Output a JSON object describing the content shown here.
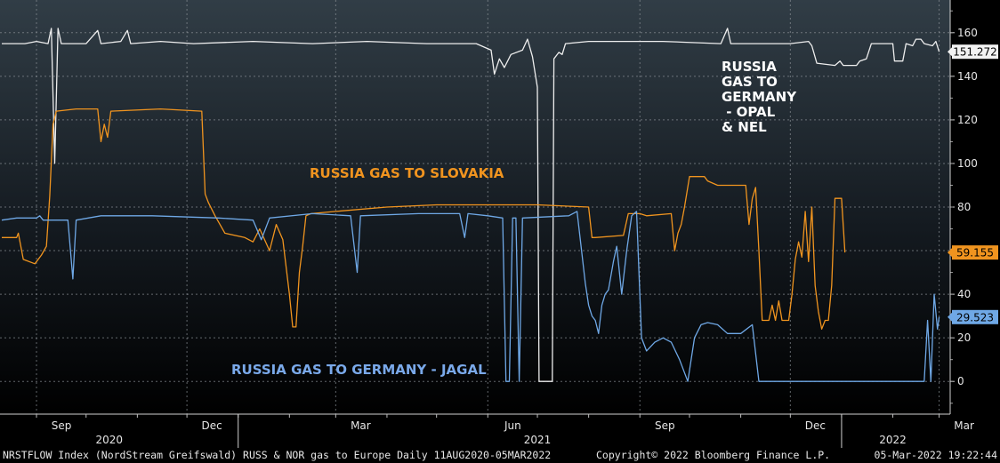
{
  "chart_data": {
    "type": "line",
    "title": "",
    "x_range": [
      "2020-08-11",
      "2022-03-05"
    ],
    "ylim": [
      -15,
      175
    ],
    "y_ticks": [
      0,
      20,
      40,
      60,
      80,
      100,
      120,
      140,
      160
    ],
    "y_axis_position": "right",
    "grid": true,
    "x_month_labels": [
      {
        "date": "2020-09-01",
        "label": "Sep"
      },
      {
        "date": "2020-12-01",
        "label": "Dec"
      },
      {
        "date": "2021-03-01",
        "label": "Mar"
      },
      {
        "date": "2021-06-01",
        "label": "Jun"
      },
      {
        "date": "2021-09-01",
        "label": "Sep"
      },
      {
        "date": "2021-12-01",
        "label": "Dec"
      },
      {
        "date": "2022-03-01",
        "label": "Mar"
      }
    ],
    "x_year_labels": [
      {
        "date": "2020-10-15",
        "label": "2020"
      },
      {
        "date": "2021-07-01",
        "label": "2021"
      },
      {
        "date": "2022-02-01",
        "label": "2022"
      }
    ],
    "series": [
      {
        "name": "RUSSIA GAS TO GERMANY - OPAL & NEL",
        "display_name": [
          "RUSSIA",
          "GAS TO",
          "GERMANY",
          "  - OPAL",
          "& NEL"
        ],
        "color": "#eeeeee",
        "last_value": "151.272",
        "points": [
          [
            "2020-08-11",
            155
          ],
          [
            "2020-08-25",
            155
          ],
          [
            "2020-09-01",
            156
          ],
          [
            "2020-09-08",
            155
          ],
          [
            "2020-09-10",
            162
          ],
          [
            "2020-09-12",
            100
          ],
          [
            "2020-09-14",
            162
          ],
          [
            "2020-09-16",
            155
          ],
          [
            "2020-10-01",
            155
          ],
          [
            "2020-10-08",
            161
          ],
          [
            "2020-10-10",
            155
          ],
          [
            "2020-10-22",
            156
          ],
          [
            "2020-10-26",
            161
          ],
          [
            "2020-10-28",
            155
          ],
          [
            "2020-11-15",
            156
          ],
          [
            "2020-12-05",
            155
          ],
          [
            "2021-01-10",
            156
          ],
          [
            "2021-02-15",
            155
          ],
          [
            "2021-03-20",
            156
          ],
          [
            "2021-04-25",
            155
          ],
          [
            "2021-05-25",
            155
          ],
          [
            "2021-06-03",
            152
          ],
          [
            "2021-06-05",
            141
          ],
          [
            "2021-06-08",
            148
          ],
          [
            "2021-06-11",
            144
          ],
          [
            "2021-06-15",
            150
          ],
          [
            "2021-06-22",
            152
          ],
          [
            "2021-06-25",
            157
          ],
          [
            "2021-06-28",
            149
          ],
          [
            "2021-07-01",
            135
          ],
          [
            "2021-07-02",
            0
          ],
          [
            "2021-07-10",
            0
          ],
          [
            "2021-07-11",
            148
          ],
          [
            "2021-07-14",
            151
          ],
          [
            "2021-07-16",
            150
          ],
          [
            "2021-07-18",
            155
          ],
          [
            "2021-08-01",
            156
          ],
          [
            "2021-09-15",
            156
          ],
          [
            "2021-10-20",
            155
          ],
          [
            "2021-10-24",
            162
          ],
          [
            "2021-10-26",
            155
          ],
          [
            "2021-12-01",
            155
          ],
          [
            "2021-12-12",
            156
          ],
          [
            "2021-12-14",
            154
          ],
          [
            "2021-12-17",
            146
          ],
          [
            "2021-12-28",
            145
          ],
          [
            "2021-12-31",
            147
          ],
          [
            "2022-01-02",
            145
          ],
          [
            "2022-01-10",
            145
          ],
          [
            "2022-01-12",
            147
          ],
          [
            "2022-01-16",
            148
          ],
          [
            "2022-01-19",
            155
          ],
          [
            "2022-02-01",
            155
          ],
          [
            "2022-02-02",
            147
          ],
          [
            "2022-02-07",
            147
          ],
          [
            "2022-02-09",
            155
          ],
          [
            "2022-02-13",
            154
          ],
          [
            "2022-02-15",
            157
          ],
          [
            "2022-02-18",
            157
          ],
          [
            "2022-02-20",
            155
          ],
          [
            "2022-02-25",
            154
          ],
          [
            "2022-02-27",
            156
          ],
          [
            "2022-03-01",
            151.272
          ]
        ]
      },
      {
        "name": "RUSSIA GAS TO SLOVAKIA",
        "display_name": [
          "RUSSIA GAS TO SLOVAKIA"
        ],
        "color": "#f0941f",
        "last_value": "59.155",
        "points": [
          [
            "2020-08-11",
            66
          ],
          [
            "2020-08-20",
            66
          ],
          [
            "2020-08-21",
            68
          ],
          [
            "2020-08-24",
            56
          ],
          [
            "2020-08-31",
            54
          ],
          [
            "2020-09-04",
            58
          ],
          [
            "2020-09-07",
            62
          ],
          [
            "2020-09-09",
            85
          ],
          [
            "2020-09-11",
            118
          ],
          [
            "2020-09-13",
            124
          ],
          [
            "2020-09-25",
            125
          ],
          [
            "2020-10-08",
            125
          ],
          [
            "2020-10-10",
            110
          ],
          [
            "2020-10-12",
            118
          ],
          [
            "2020-10-14",
            112
          ],
          [
            "2020-10-16",
            124
          ],
          [
            "2020-11-15",
            125
          ],
          [
            "2020-12-10",
            124
          ],
          [
            "2020-12-12",
            86
          ],
          [
            "2020-12-14",
            82
          ],
          [
            "2020-12-18",
            76
          ],
          [
            "2020-12-24",
            68
          ],
          [
            "2021-01-05",
            66
          ],
          [
            "2021-01-10",
            64
          ],
          [
            "2021-01-14",
            70
          ],
          [
            "2021-01-20",
            60
          ],
          [
            "2021-01-24",
            72
          ],
          [
            "2021-01-28",
            65
          ],
          [
            "2021-02-01",
            40
          ],
          [
            "2021-02-03",
            25
          ],
          [
            "2021-02-05",
            25
          ],
          [
            "2021-02-07",
            50
          ],
          [
            "2021-02-09",
            62
          ],
          [
            "2021-02-11",
            76
          ],
          [
            "2021-02-14",
            77
          ],
          [
            "2021-03-01",
            78
          ],
          [
            "2021-04-01",
            80
          ],
          [
            "2021-05-01",
            81
          ],
          [
            "2021-06-01",
            81
          ],
          [
            "2021-07-01",
            81
          ],
          [
            "2021-08-01",
            80
          ],
          [
            "2021-08-03",
            66
          ],
          [
            "2021-08-05",
            66
          ],
          [
            "2021-08-22",
            67
          ],
          [
            "2021-08-25",
            77
          ],
          [
            "2021-09-01",
            77
          ],
          [
            "2021-09-05",
            76
          ],
          [
            "2021-09-20",
            77
          ],
          [
            "2021-09-22",
            60
          ],
          [
            "2021-09-24",
            68
          ],
          [
            "2021-09-26",
            72
          ],
          [
            "2021-09-28",
            80
          ],
          [
            "2021-10-01",
            94
          ],
          [
            "2021-10-10",
            94
          ],
          [
            "2021-10-12",
            92
          ],
          [
            "2021-10-18",
            90
          ],
          [
            "2021-11-01",
            90
          ],
          [
            "2021-11-04",
            90
          ],
          [
            "2021-11-06",
            72
          ],
          [
            "2021-11-08",
            84
          ],
          [
            "2021-11-10",
            89
          ],
          [
            "2021-11-12",
            60
          ],
          [
            "2021-11-14",
            28
          ],
          [
            "2021-11-18",
            28
          ],
          [
            "2021-11-20",
            35
          ],
          [
            "2021-11-22",
            28
          ],
          [
            "2021-11-24",
            37
          ],
          [
            "2021-11-26",
            28
          ],
          [
            "2021-11-30",
            28
          ],
          [
            "2021-12-02",
            40
          ],
          [
            "2021-12-04",
            56
          ],
          [
            "2021-12-06",
            64
          ],
          [
            "2021-12-08",
            57
          ],
          [
            "2021-12-10",
            78
          ],
          [
            "2021-12-12",
            55
          ],
          [
            "2021-12-14",
            80
          ],
          [
            "2021-12-16",
            44
          ],
          [
            "2021-12-18",
            32
          ],
          [
            "2021-12-20",
            24
          ],
          [
            "2021-12-22",
            28
          ],
          [
            "2021-12-24",
            28
          ],
          [
            "2021-12-26",
            44
          ],
          [
            "2021-12-28",
            84
          ],
          [
            "2022-01-01",
            84
          ],
          [
            "2022-01-03",
            59.155
          ]
        ]
      },
      {
        "name": "RUSSIA GAS TO GERMANY - JAGAL",
        "display_name": [
          "RUSSIA GAS TO GERMANY - JAGAL"
        ],
        "color": "#6fa8e6",
        "last_value": "29.523",
        "points": [
          [
            "2020-08-11",
            74
          ],
          [
            "2020-08-20",
            75
          ],
          [
            "2020-09-01",
            75
          ],
          [
            "2020-09-03",
            76
          ],
          [
            "2020-09-05",
            74
          ],
          [
            "2020-09-20",
            74
          ],
          [
            "2020-09-23",
            47
          ],
          [
            "2020-09-25",
            74
          ],
          [
            "2020-10-10",
            76
          ],
          [
            "2020-11-10",
            76
          ],
          [
            "2020-12-20",
            75
          ],
          [
            "2021-01-10",
            74
          ],
          [
            "2021-01-15",
            65
          ],
          [
            "2021-01-20",
            75
          ],
          [
            "2021-02-15",
            77
          ],
          [
            "2021-03-10",
            76
          ],
          [
            "2021-03-14",
            50
          ],
          [
            "2021-03-16",
            76
          ],
          [
            "2021-04-20",
            77
          ],
          [
            "2021-05-15",
            77
          ],
          [
            "2021-05-18",
            66
          ],
          [
            "2021-05-20",
            77
          ],
          [
            "2021-06-01",
            76
          ],
          [
            "2021-06-10",
            75
          ],
          [
            "2021-06-12",
            0
          ],
          [
            "2021-06-14",
            0
          ],
          [
            "2021-06-16",
            75
          ],
          [
            "2021-06-18",
            75
          ],
          [
            "2021-06-20",
            0
          ],
          [
            "2021-06-22",
            75
          ],
          [
            "2021-07-20",
            76
          ],
          [
            "2021-07-25",
            78
          ],
          [
            "2021-07-30",
            45
          ],
          [
            "2021-08-01",
            35
          ],
          [
            "2021-08-03",
            30
          ],
          [
            "2021-08-05",
            28
          ],
          [
            "2021-08-07",
            22
          ],
          [
            "2021-08-09",
            35
          ],
          [
            "2021-08-11",
            40
          ],
          [
            "2021-08-13",
            42
          ],
          [
            "2021-08-16",
            55
          ],
          [
            "2021-08-18",
            62
          ],
          [
            "2021-08-21",
            40
          ],
          [
            "2021-08-24",
            60
          ],
          [
            "2021-08-27",
            76
          ],
          [
            "2021-08-30",
            78
          ],
          [
            "2021-09-02",
            20
          ],
          [
            "2021-09-05",
            14
          ],
          [
            "2021-09-10",
            18
          ],
          [
            "2021-09-15",
            20
          ],
          [
            "2021-09-20",
            18
          ],
          [
            "2021-09-25",
            10
          ],
          [
            "2021-09-30",
            0
          ],
          [
            "2021-10-04",
            20
          ],
          [
            "2021-10-08",
            26
          ],
          [
            "2021-10-12",
            27
          ],
          [
            "2021-10-18",
            26
          ],
          [
            "2021-10-24",
            22
          ],
          [
            "2021-11-01",
            22
          ],
          [
            "2021-11-08",
            26
          ],
          [
            "2021-11-12",
            0
          ],
          [
            "2021-11-15",
            0
          ],
          [
            "2021-12-01",
            0
          ],
          [
            "2022-01-01",
            0
          ],
          [
            "2022-02-01",
            0
          ],
          [
            "2022-02-20",
            0
          ],
          [
            "2022-02-22",
            28
          ],
          [
            "2022-02-24",
            0
          ],
          [
            "2022-02-26",
            40
          ],
          [
            "2022-02-28",
            24
          ],
          [
            "2022-03-01",
            29.523
          ]
        ]
      }
    ]
  },
  "footer": {
    "left": "NRSTFLOW Index (NordStream Greifswald) RUSS & NOR gas to Europe  Daily 11AUG2020-05MAR2022",
    "center": "Copyright© 2022 Bloomberg Finance L.P.",
    "right": "05-Mar-2022 19:22:44"
  }
}
